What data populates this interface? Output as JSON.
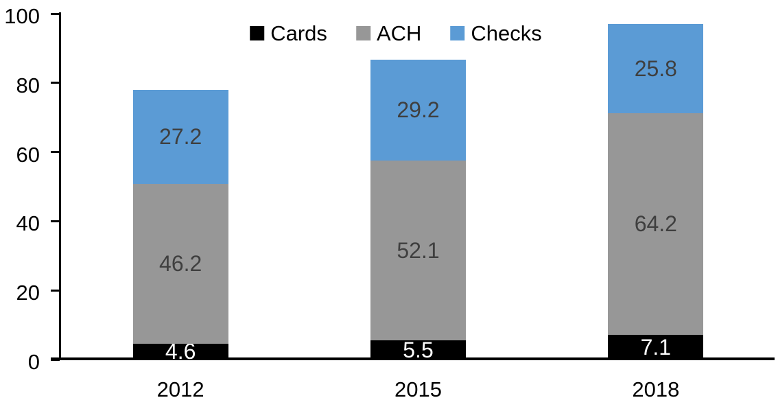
{
  "chart_data": {
    "type": "bar",
    "stacked": true,
    "title": "",
    "xlabel": "",
    "ylabel": "",
    "categories": [
      "2012",
      "2015",
      "2018"
    ],
    "series": [
      {
        "name": "Cards",
        "color": "#000000",
        "label_color": "#ffffff",
        "values": [
          4.6,
          5.5,
          7.1
        ]
      },
      {
        "name": "ACH",
        "color": "#979797",
        "label_color": "#3f3f3f",
        "values": [
          46.2,
          52.1,
          64.2
        ]
      },
      {
        "name": "Checks",
        "color": "#5b9bd5",
        "label_color": "#3f3f3f",
        "values": [
          27.2,
          29.2,
          25.8
        ]
      }
    ],
    "totals": [
      78.0,
      86.8,
      97.1
    ],
    "ylim": [
      0,
      100
    ],
    "yticks": [
      0,
      20,
      40,
      60,
      80,
      100
    ],
    "grid": false,
    "legend_position": "top-center",
    "axis_color": "#000000"
  }
}
